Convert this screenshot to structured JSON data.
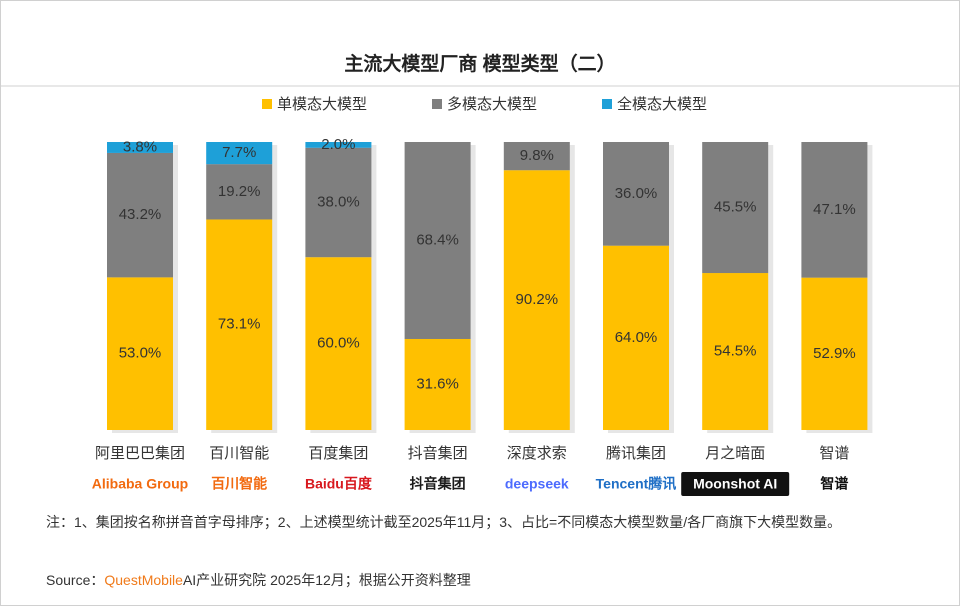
{
  "chart_data": {
    "type": "stacked_bar",
    "title": "主流大模型厂商 模型类型（二）",
    "categories": [
      "阿里巴巴集团",
      "百川智能",
      "百度集团",
      "抖音集团",
      "深度求索",
      "腾讯集团",
      "月之暗面",
      "智谱"
    ],
    "logos": [
      "Alibaba Group",
      "百川智能",
      "Baidu百度",
      "抖音集团",
      "deepseek",
      "Tencent腾讯",
      "Moonshot AI",
      "智谱"
    ],
    "ylim": [
      0,
      100
    ],
    "series": [
      {
        "name": "单模态大模型",
        "color": "#ffc000",
        "values": [
          53.0,
          73.1,
          60.0,
          31.6,
          90.2,
          64.0,
          54.5,
          52.9
        ],
        "value_labels": [
          "53.0%",
          "73.1%",
          "60.0%",
          "31.6%",
          "90.2%",
          "64.0%",
          "54.5%",
          "52.9%"
        ]
      },
      {
        "name": "多模态大模型",
        "color": "#7f7f7f",
        "values": [
          43.2,
          19.2,
          38.0,
          68.4,
          9.8,
          36.0,
          45.5,
          47.1
        ],
        "value_labels": [
          "43.2%",
          "19.2%",
          "38.0%",
          "68.4%",
          "9.8%",
          "36.0%",
          "45.5%",
          "47.1%"
        ]
      },
      {
        "name": "全模态大模型",
        "color": "#1ea0d8",
        "values": [
          3.8,
          7.7,
          2.0,
          null,
          null,
          null,
          null,
          null
        ],
        "value_labels": [
          "3.8%",
          "7.7%",
          "2.0%",
          null,
          null,
          null,
          null,
          null
        ]
      }
    ],
    "note": "注：1、集团按名称拼音首字母排序；2、上述模型统计截至2025年11月；3、占比=不同模态大模型数量/各厂商旗下大模型数量。",
    "source_label": "Source：",
    "source_brand": "QuestMobile",
    "source_text": "AI产业研究院 2025年12月；根据公开资料整理"
  }
}
